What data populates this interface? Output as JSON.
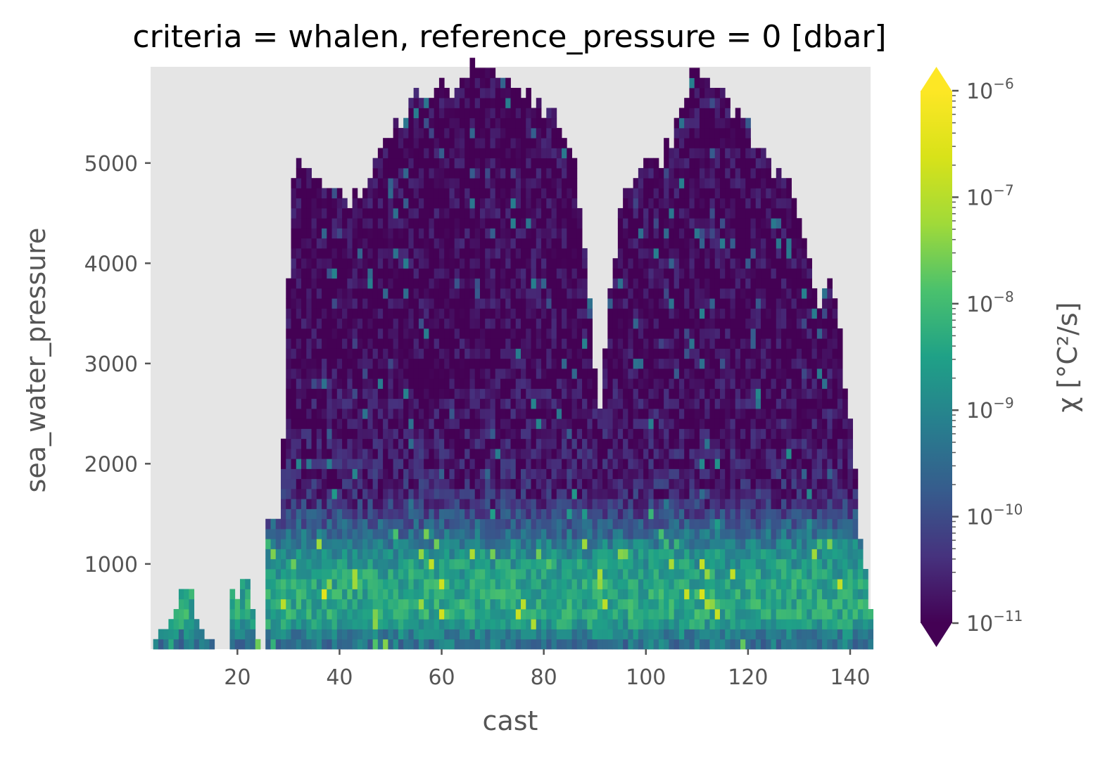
{
  "chart_data": {
    "type": "heatmap",
    "title": "criteria = whalen, reference_pressure = 0 [dbar]",
    "xlabel": "cast",
    "ylabel": "sea_water_pressure",
    "xlim": [
      3,
      144
    ],
    "ylim": [
      150,
      5960
    ],
    "x_ticks": [
      "20",
      "40",
      "60",
      "80",
      "100",
      "120",
      "140"
    ],
    "y_ticks": [
      "1000",
      "2000",
      "3000",
      "4000",
      "5000"
    ],
    "colormap": "viridis",
    "colorbar": {
      "label": "χ [°C²/s]",
      "scale": "log",
      "range": [
        1e-11,
        1e-06
      ],
      "extend": "both",
      "ticks": [
        {
          "base": "10",
          "exp": "−6"
        },
        {
          "base": "10",
          "exp": "−7"
        },
        {
          "base": "10",
          "exp": "−8"
        },
        {
          "base": "10",
          "exp": "−9"
        },
        {
          "base": "10",
          "exp": "−10"
        },
        {
          "base": "10",
          "exp": "−11"
        }
      ]
    },
    "cell_height_dbar": 100,
    "max_pressure_by_cast": [
      {
        "cast": 4,
        "max": 200
      },
      {
        "cast": 6,
        "max": 300
      },
      {
        "cast": 7,
        "max": 400
      },
      {
        "cast": 8,
        "max": 600
      },
      {
        "cast": 9,
        "max": 700
      },
      {
        "cast": 10,
        "max": 750
      },
      {
        "cast": 11,
        "max": 700
      },
      {
        "cast": 12,
        "max": 550
      },
      {
        "cast": 13,
        "max": 400
      },
      {
        "cast": 14,
        "max": 300
      },
      {
        "cast": 15,
        "max": 200
      },
      {
        "cast": 19,
        "max": 600
      },
      {
        "cast": 20,
        "max": 700
      },
      {
        "cast": 21,
        "max": 750
      },
      {
        "cast": 22,
        "max": 700
      },
      {
        "cast": 23,
        "max": 550
      },
      {
        "cast": 24,
        "max": 300
      },
      {
        "cast": 26,
        "max": 1300
      },
      {
        "cast": 28,
        "max": 1400
      },
      {
        "cast": 29,
        "max": 2200
      },
      {
        "cast": 30,
        "max": 3800
      },
      {
        "cast": 31,
        "max": 4700
      },
      {
        "cast": 32,
        "max": 5000
      },
      {
        "cast": 34,
        "max": 4800
      },
      {
        "cast": 36,
        "max": 4800
      },
      {
        "cast": 38,
        "max": 4700
      },
      {
        "cast": 40,
        "max": 4700
      },
      {
        "cast": 42,
        "max": 4600
      },
      {
        "cast": 44,
        "max": 4500
      },
      {
        "cast": 46,
        "max": 4900
      },
      {
        "cast": 48,
        "max": 5200
      },
      {
        "cast": 50,
        "max": 5300
      },
      {
        "cast": 52,
        "max": 5400
      },
      {
        "cast": 54,
        "max": 5500
      },
      {
        "cast": 56,
        "max": 5600
      },
      {
        "cast": 58,
        "max": 5700
      },
      {
        "cast": 60,
        "max": 5750
      },
      {
        "cast": 62,
        "max": 5700
      },
      {
        "cast": 64,
        "max": 5750
      },
      {
        "cast": 66,
        "max": 5850
      },
      {
        "cast": 68,
        "max": 5950
      },
      {
        "cast": 70,
        "max": 5900
      },
      {
        "cast": 72,
        "max": 5850
      },
      {
        "cast": 74,
        "max": 5800
      },
      {
        "cast": 76,
        "max": 5700
      },
      {
        "cast": 78,
        "max": 5600
      },
      {
        "cast": 80,
        "max": 5500
      },
      {
        "cast": 82,
        "max": 5400
      },
      {
        "cast": 84,
        "max": 5200
      },
      {
        "cast": 86,
        "max": 4900
      },
      {
        "cast": 87,
        "max": 4600
      },
      {
        "cast": 88,
        "max": 4200
      },
      {
        "cast": 89,
        "max": 3600
      },
      {
        "cast": 90,
        "max": 3000
      },
      {
        "cast": 91,
        "max": 2600
      },
      {
        "cast": 92,
        "max": 3100
      },
      {
        "cast": 93,
        "max": 3700
      },
      {
        "cast": 94,
        "max": 4000
      },
      {
        "cast": 95,
        "max": 4400
      },
      {
        "cast": 97,
        "max": 4700
      },
      {
        "cast": 99,
        "max": 4900
      },
      {
        "cast": 101,
        "max": 5000
      },
      {
        "cast": 103,
        "max": 5000
      },
      {
        "cast": 105,
        "max": 5200
      },
      {
        "cast": 107,
        "max": 5600
      },
      {
        "cast": 109,
        "max": 5800
      },
      {
        "cast": 111,
        "max": 5900
      },
      {
        "cast": 113,
        "max": 5700
      },
      {
        "cast": 115,
        "max": 5600
      },
      {
        "cast": 117,
        "max": 5500
      },
      {
        "cast": 119,
        "max": 5400
      },
      {
        "cast": 121,
        "max": 5200
      },
      {
        "cast": 123,
        "max": 5100
      },
      {
        "cast": 125,
        "max": 4900
      },
      {
        "cast": 127,
        "max": 4800
      },
      {
        "cast": 129,
        "max": 4600
      },
      {
        "cast": 131,
        "max": 4300
      },
      {
        "cast": 133,
        "max": 3600
      },
      {
        "cast": 135,
        "max": 3700
      },
      {
        "cast": 137,
        "max": 3600
      },
      {
        "cast": 138,
        "max": 3400
      },
      {
        "cast": 139,
        "max": 2600
      },
      {
        "cast": 140,
        "max": 2400
      },
      {
        "cast": 141,
        "max": 1900
      },
      {
        "cast": 142,
        "max": 1200
      },
      {
        "cast": 143,
        "max": 900
      },
      {
        "cast": 144,
        "max": 500
      }
    ],
    "log10_chi_by_pressure": [
      {
        "pressure": 200,
        "log10_chi": -9.3
      },
      {
        "pressure": 400,
        "log10_chi": -8.4
      },
      {
        "pressure": 700,
        "log10_chi": -8.4
      },
      {
        "pressure": 1000,
        "log10_chi": -8.7
      },
      {
        "pressure": 1300,
        "log10_chi": -9.6
      },
      {
        "pressure": 1600,
        "log10_chi": -10.5
      },
      {
        "pressure": 2000,
        "log10_chi": -10.7
      },
      {
        "pressure": 3000,
        "log10_chi": -11.0
      },
      {
        "pressure": 5960,
        "log10_chi": -11.0
      }
    ]
  }
}
